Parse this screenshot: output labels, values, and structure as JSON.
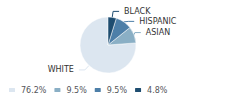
{
  "chart_data": {
    "type": "pie",
    "categories": [
      "WHITE",
      "ASIAN",
      "HISPANIC",
      "BLACK"
    ],
    "values": [
      76.2,
      9.5,
      9.5,
      4.8
    ],
    "value_labels": [
      "76.2%",
      "9.5%",
      "9.5%",
      "4.8%"
    ],
    "colors": [
      "#dce6f0",
      "#8aafc5",
      "#4d7fa8",
      "#1e4d70"
    ],
    "legend": "bottom left"
  }
}
